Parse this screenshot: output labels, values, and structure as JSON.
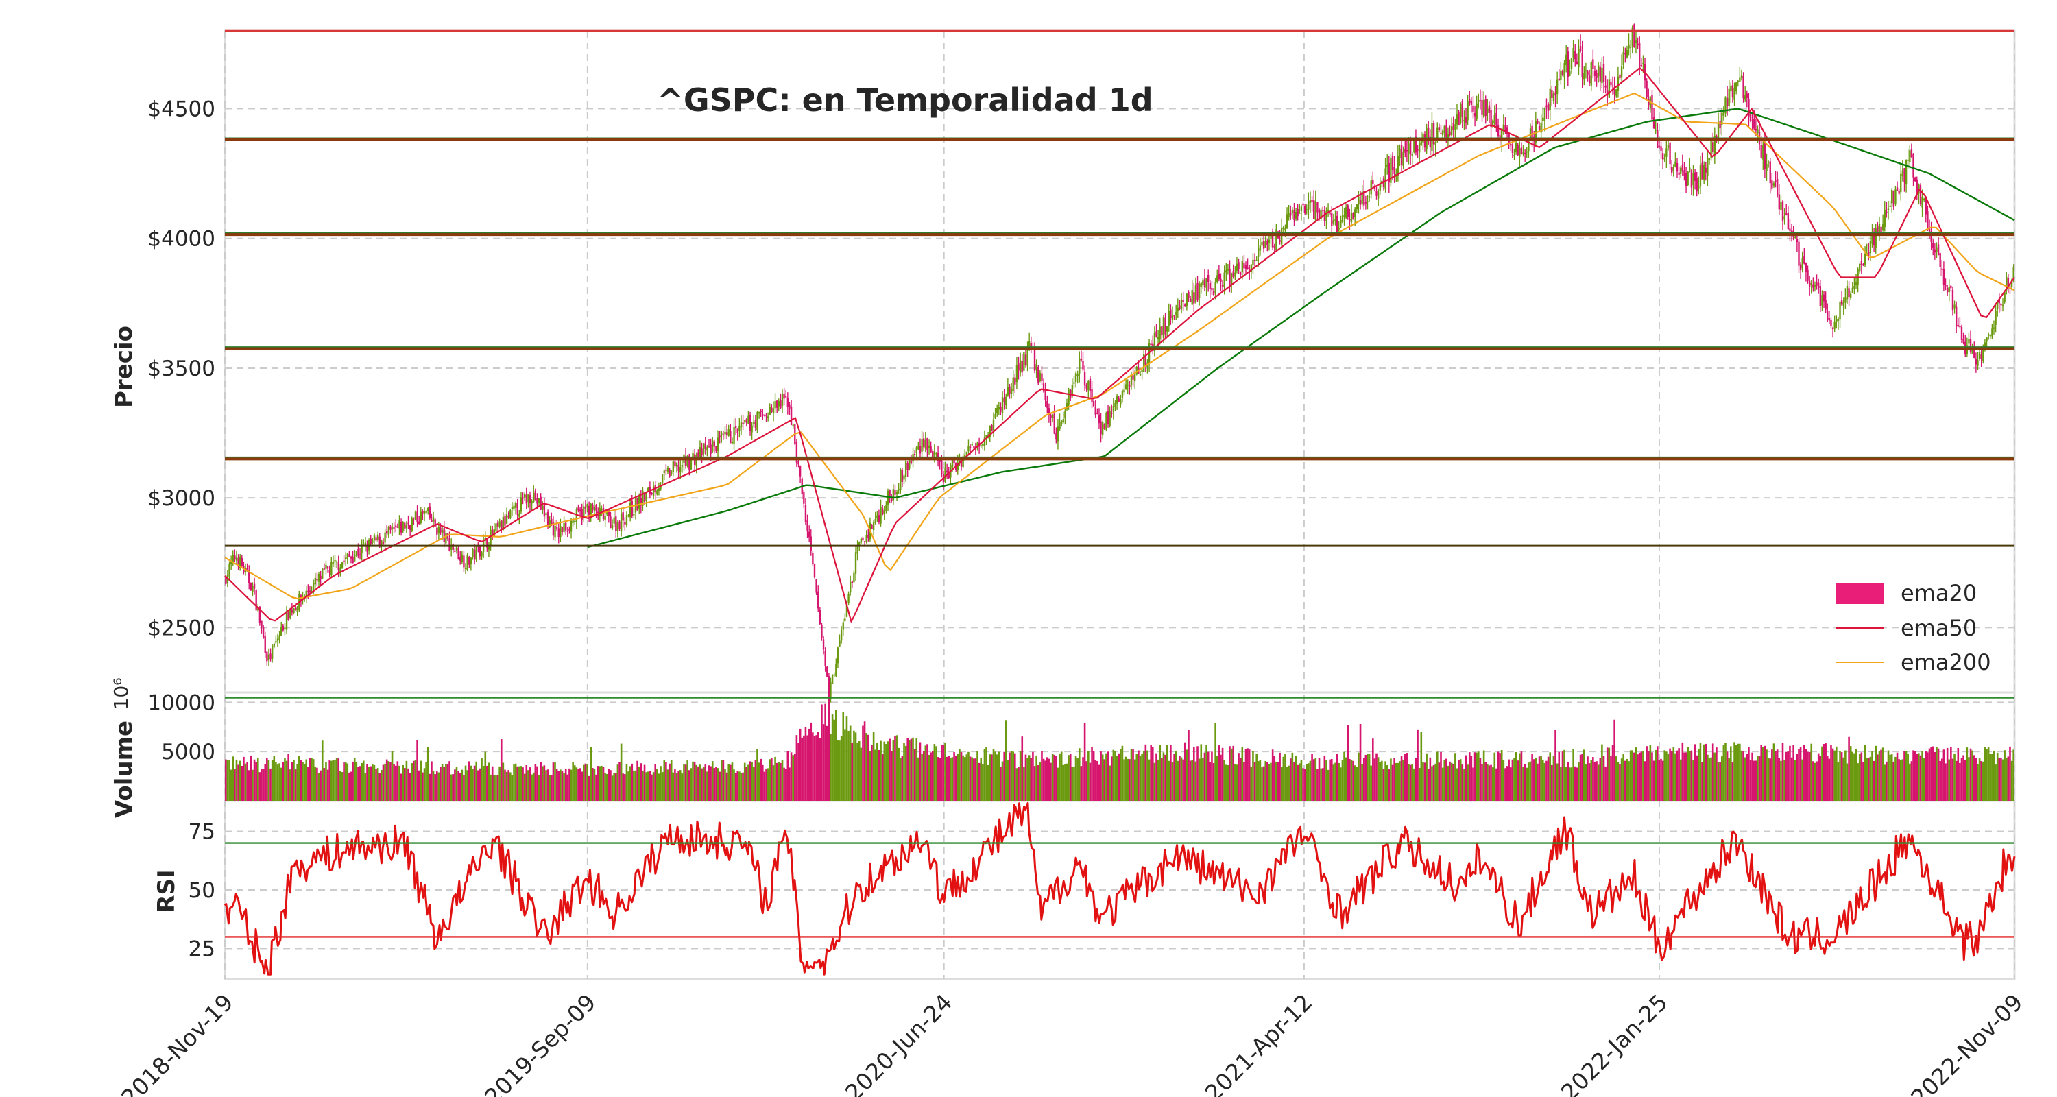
{
  "chart_data": [
    {
      "type": "candlestick",
      "panel": "price",
      "title": "^GSPC: en Temporalidad 1d",
      "ylabel": "Precio",
      "ylim": [
        2250,
        4800
      ],
      "yticks": [
        2500,
        3000,
        3500,
        4000,
        4500
      ],
      "ytick_labels": [
        "$2500",
        "$3000",
        "$3500",
        "$4000",
        "$4500"
      ],
      "xlim": [
        "2018-11-19",
        "2022-11-09"
      ],
      "xticks": [
        "2018-Nov-19",
        "2019-Sep-09",
        "2020-Jun-24",
        "2021-Apr-12",
        "2022-Jan-25",
        "2022-Nov-09"
      ],
      "grid": true,
      "legend": {
        "position": "lower-right",
        "entries": [
          "ema20",
          "ema50",
          "ema200"
        ]
      },
      "colors": {
        "up": "#6b9a10",
        "down": "#d6166e",
        "ema50": "#dc143c",
        "ema200": "#f2a51a",
        "ema_long": "#0a7a0a",
        "resistance": "#c82828",
        "support": "#8b3a0e"
      },
      "price_path": [
        [
          "2018-11-19",
          2690
        ],
        [
          "2018-11-28",
          2780
        ],
        [
          "2018-12-12",
          2650
        ],
        [
          "2018-12-24",
          2370
        ],
        [
          "2019-01-10",
          2560
        ],
        [
          "2019-02-10",
          2720
        ],
        [
          "2019-03-10",
          2800
        ],
        [
          "2019-05-01",
          2940
        ],
        [
          "2019-05-15",
          2850
        ],
        [
          "2019-06-03",
          2750
        ],
        [
          "2019-07-26",
          3020
        ],
        [
          "2019-08-15",
          2860
        ],
        [
          "2019-09-09",
          2960
        ],
        [
          "2019-10-03",
          2900
        ],
        [
          "2019-11-15",
          3100
        ],
        [
          "2019-12-31",
          3230
        ],
        [
          "2020-02-19",
          3380
        ],
        [
          "2020-03-09",
          2750
        ],
        [
          "2020-03-23",
          2240
        ],
        [
          "2020-04-15",
          2800
        ],
        [
          "2020-06-08",
          3230
        ],
        [
          "2020-06-24",
          3080
        ],
        [
          "2020-07-31",
          3270
        ],
        [
          "2020-09-02",
          3580
        ],
        [
          "2020-09-23",
          3240
        ],
        [
          "2020-10-12",
          3530
        ],
        [
          "2020-10-30",
          3270
        ],
        [
          "2020-12-31",
          3750
        ],
        [
          "2021-03-01",
          3900
        ],
        [
          "2021-04-12",
          4130
        ],
        [
          "2021-05-12",
          4060
        ],
        [
          "2021-07-01",
          4320
        ],
        [
          "2021-09-02",
          4530
        ],
        [
          "2021-10-04",
          4300
        ],
        [
          "2021-11-15",
          4700
        ],
        [
          "2021-12-20",
          4570
        ],
        [
          "2022-01-04",
          4800
        ],
        [
          "2022-01-25",
          4350
        ],
        [
          "2022-02-24",
          4200
        ],
        [
          "2022-03-29",
          4630
        ],
        [
          "2022-05-20",
          3900
        ],
        [
          "2022-06-16",
          3670
        ],
        [
          "2022-08-16",
          4300
        ],
        [
          "2022-09-30",
          3585
        ],
        [
          "2022-10-12",
          3540
        ],
        [
          "2022-11-09",
          3900
        ]
      ],
      "ema50_path": [
        [
          "2018-11-19",
          2700
        ],
        [
          "2018-12-28",
          2520
        ],
        [
          "2019-02-15",
          2700
        ],
        [
          "2019-05-10",
          2900
        ],
        [
          "2019-06-15",
          2830
        ],
        [
          "2019-08-05",
          2980
        ],
        [
          "2019-09-09",
          2920
        ],
        [
          "2019-12-31",
          3160
        ],
        [
          "2020-02-25",
          3310
        ],
        [
          "2020-04-10",
          2520
        ],
        [
          "2020-05-15",
          2900
        ],
        [
          "2020-07-10",
          3150
        ],
        [
          "2020-09-10",
          3420
        ],
        [
          "2020-10-25",
          3380
        ],
        [
          "2021-01-15",
          3720
        ],
        [
          "2021-05-01",
          4100
        ],
        [
          "2021-09-10",
          4440
        ],
        [
          "2021-10-20",
          4350
        ],
        [
          "2022-01-10",
          4660
        ],
        [
          "2022-03-10",
          4310
        ],
        [
          "2022-04-10",
          4500
        ],
        [
          "2022-06-20",
          3850
        ],
        [
          "2022-07-20",
          3850
        ],
        [
          "2022-08-25",
          4200
        ],
        [
          "2022-10-15",
          3680
        ],
        [
          "2022-11-09",
          3850
        ]
      ],
      "ema200_path": [
        [
          "2018-11-19",
          2770
        ],
        [
          "2019-01-15",
          2610
        ],
        [
          "2019-03-01",
          2650
        ],
        [
          "2019-05-20",
          2860
        ],
        [
          "2019-07-01",
          2850
        ],
        [
          "2019-09-09",
          2930
        ],
        [
          "2019-12-31",
          3050
        ],
        [
          "2020-02-28",
          3260
        ],
        [
          "2020-04-20",
          2930
        ],
        [
          "2020-05-10",
          2710
        ],
        [
          "2020-06-20",
          3000
        ],
        [
          "2020-09-15",
          3320
        ],
        [
          "2020-10-31",
          3400
        ],
        [
          "2021-01-15",
          3640
        ],
        [
          "2021-05-01",
          4000
        ],
        [
          "2021-09-01",
          4320
        ],
        [
          "2022-01-05",
          4560
        ],
        [
          "2022-02-15",
          4450
        ],
        [
          "2022-04-05",
          4440
        ],
        [
          "2022-06-15",
          4120
        ],
        [
          "2022-07-15",
          3920
        ],
        [
          "2022-09-05",
          4050
        ],
        [
          "2022-10-10",
          3870
        ],
        [
          "2022-11-09",
          3800
        ]
      ],
      "ema_long_path": [
        [
          "2019-09-09",
          2810
        ],
        [
          "2019-12-31",
          2950
        ],
        [
          "2020-03-05",
          3050
        ],
        [
          "2020-05-15",
          3000
        ],
        [
          "2020-08-10",
          3100
        ],
        [
          "2020-11-01",
          3160
        ],
        [
          "2021-02-01",
          3500
        ],
        [
          "2021-05-01",
          3800
        ],
        [
          "2021-08-01",
          4100
        ],
        [
          "2021-11-01",
          4350
        ],
        [
          "2022-01-15",
          4450
        ],
        [
          "2022-03-30",
          4500
        ],
        [
          "2022-06-01",
          4400
        ],
        [
          "2022-09-01",
          4250
        ],
        [
          "2022-11-09",
          4070
        ]
      ],
      "horizontal_levels": [
        {
          "value": 4800,
          "style": "resistance"
        },
        {
          "value": 4380,
          "style": "support"
        },
        {
          "value": 4015,
          "style": "support"
        },
        {
          "value": 3575,
          "style": "support"
        },
        {
          "value": 3150,
          "style": "support"
        },
        {
          "value": 2815,
          "style": "support-dark"
        },
        {
          "value": 2230,
          "style": "green"
        }
      ]
    },
    {
      "type": "bar",
      "panel": "volume",
      "ylabel": "Volume",
      "scale_label": "10⁶",
      "ylim": [
        0,
        11000
      ],
      "yticks": [
        5000,
        10000
      ],
      "ytick_labels": [
        "5000",
        "10000"
      ],
      "grid": true,
      "volume_path": [
        [
          "2018-11-19",
          3800
        ],
        [
          "2019-06-01",
          3300
        ],
        [
          "2019-09-09",
          3200
        ],
        [
          "2020-02-20",
          3700
        ],
        [
          "2020-03-01",
          7000
        ],
        [
          "2020-03-20",
          8400
        ],
        [
          "2020-05-01",
          6000
        ],
        [
          "2020-06-24",
          4800
        ],
        [
          "2020-09-01",
          4100
        ],
        [
          "2021-01-01",
          5000
        ],
        [
          "2021-04-12",
          4000
        ],
        [
          "2021-12-01",
          4300
        ],
        [
          "2022-01-25",
          5000
        ],
        [
          "2022-11-09",
          4500
        ]
      ]
    },
    {
      "type": "line",
      "panel": "rsi",
      "ylabel": "RSI",
      "ylim": [
        12,
        88
      ],
      "yticks": [
        25,
        50,
        75
      ],
      "ytick_labels": [
        "25",
        "50",
        "75"
      ],
      "levels": [
        70,
        30
      ],
      "grid": true,
      "rsi_path": [
        [
          "2018-11-19",
          40
        ],
        [
          "2018-11-28",
          44
        ],
        [
          "2018-12-24",
          15
        ],
        [
          "2019-01-15",
          60
        ],
        [
          "2019-02-28",
          68
        ],
        [
          "2019-04-15",
          70
        ],
        [
          "2019-05-10",
          30
        ],
        [
          "2019-06-25",
          72
        ],
        [
          "2019-08-05",
          30
        ],
        [
          "2019-09-09",
          55
        ],
        [
          "2019-10-02",
          40
        ],
        [
          "2019-11-15",
          73
        ],
        [
          "2020-01-15",
          70
        ],
        [
          "2020-02-01",
          45
        ],
        [
          "2020-02-19",
          75
        ],
        [
          "2020-03-01",
          20
        ],
        [
          "2020-03-20",
          20
        ],
        [
          "2020-04-15",
          50
        ],
        [
          "2020-06-08",
          73
        ],
        [
          "2020-06-24",
          47
        ],
        [
          "2020-08-31",
          85
        ],
        [
          "2020-09-10",
          40
        ],
        [
          "2020-10-12",
          62
        ],
        [
          "2020-10-30",
          38
        ],
        [
          "2020-12-31",
          65
        ],
        [
          "2021-03-05",
          48
        ],
        [
          "2021-04-12",
          75
        ],
        [
          "2021-05-12",
          40
        ],
        [
          "2021-07-01",
          70
        ],
        [
          "2021-08-20",
          50
        ],
        [
          "2021-09-02",
          65
        ],
        [
          "2021-10-04",
          35
        ],
        [
          "2021-11-10",
          77
        ],
        [
          "2021-12-01",
          40
        ],
        [
          "2022-01-05",
          55
        ],
        [
          "2022-01-25",
          25
        ],
        [
          "2022-02-15",
          42
        ],
        [
          "2022-03-29",
          72
        ],
        [
          "2022-05-10",
          30
        ],
        [
          "2022-06-16",
          30
        ],
        [
          "2022-08-16",
          72
        ],
        [
          "2022-09-30",
          28
        ],
        [
          "2022-10-12",
          30
        ],
        [
          "2022-11-01",
          60
        ],
        [
          "2022-11-09",
          57
        ]
      ]
    }
  ]
}
